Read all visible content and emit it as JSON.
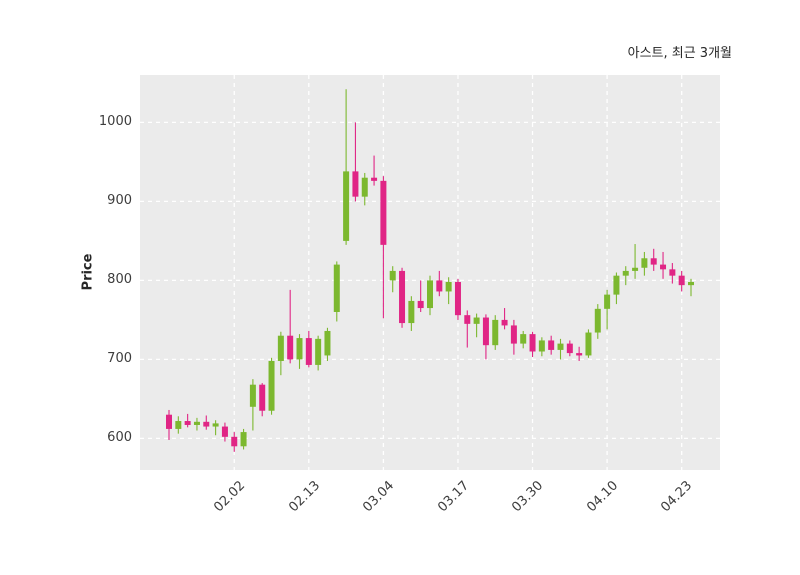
{
  "title": "아스트, 최근 3개월",
  "chart_data": {
    "type": "candlestick",
    "title": "아스트, 최근 3개월",
    "ylabel": "Price",
    "ylim": [
      560,
      1060
    ],
    "yticks": [
      600,
      700,
      800,
      900,
      1000
    ],
    "xtick_labels": [
      "02.02",
      "02.13",
      "03.04",
      "03.17",
      "03.30",
      "04.10",
      "04.23"
    ],
    "xtick_indices": [
      7,
      15,
      23,
      31,
      39,
      47,
      55
    ],
    "grid": true,
    "legend": "none",
    "colors": {
      "up": "#7cb82f",
      "down": "#e02585",
      "plot_bg": "#ebebeb",
      "grid": "#ffffff",
      "text": "#3d3d3d"
    },
    "candles": [
      [
        630,
        636,
        598,
        612
      ],
      [
        612,
        628,
        606,
        622
      ],
      [
        622,
        631,
        614,
        617
      ],
      [
        617,
        626,
        610,
        621
      ],
      [
        621,
        629,
        611,
        615
      ],
      [
        615,
        623,
        604,
        619
      ],
      [
        615,
        620,
        596,
        602
      ],
      [
        602,
        608,
        583,
        590
      ],
      [
        590,
        612,
        586,
        608
      ],
      [
        640,
        675,
        610,
        668
      ],
      [
        668,
        670,
        628,
        635
      ],
      [
        635,
        702,
        630,
        698
      ],
      [
        698,
        735,
        680,
        730
      ],
      [
        730,
        788,
        695,
        700
      ],
      [
        700,
        732,
        688,
        727
      ],
      [
        727,
        736,
        690,
        693
      ],
      [
        693,
        730,
        686,
        726
      ],
      [
        705,
        740,
        698,
        736
      ],
      [
        760,
        824,
        748,
        820
      ],
      [
        850,
        1042,
        845,
        938
      ],
      [
        938,
        1000,
        900,
        906
      ],
      [
        906,
        936,
        895,
        930
      ],
      [
        930,
        958,
        920,
        926
      ],
      [
        926,
        932,
        752,
        845
      ],
      [
        800,
        818,
        785,
        812
      ],
      [
        812,
        816,
        740,
        746
      ],
      [
        746,
        780,
        736,
        774
      ],
      [
        774,
        800,
        760,
        765
      ],
      [
        765,
        806,
        756,
        800
      ],
      [
        800,
        812,
        780,
        786
      ],
      [
        786,
        804,
        770,
        798
      ],
      [
        798,
        802,
        750,
        756
      ],
      [
        756,
        762,
        715,
        745
      ],
      [
        745,
        758,
        728,
        753
      ],
      [
        753,
        757,
        700,
        718
      ],
      [
        718,
        756,
        712,
        750
      ],
      [
        750,
        765,
        738,
        743
      ],
      [
        743,
        750,
        706,
        720
      ],
      [
        720,
        736,
        714,
        732
      ],
      [
        732,
        735,
        703,
        710
      ],
      [
        710,
        728,
        704,
        724
      ],
      [
        724,
        730,
        706,
        712
      ],
      [
        712,
        726,
        700,
        720
      ],
      [
        720,
        724,
        704,
        708
      ],
      [
        708,
        716,
        698,
        705
      ],
      [
        705,
        738,
        702,
        734
      ],
      [
        734,
        770,
        726,
        764
      ],
      [
        764,
        788,
        738,
        782
      ],
      [
        782,
        810,
        770,
        806
      ],
      [
        806,
        818,
        794,
        812
      ],
      [
        812,
        846,
        802,
        816
      ],
      [
        816,
        836,
        806,
        828
      ],
      [
        828,
        840,
        812,
        820
      ],
      [
        820,
        836,
        802,
        814
      ],
      [
        814,
        822,
        796,
        806
      ],
      [
        806,
        812,
        786,
        794
      ],
      [
        794,
        802,
        780,
        798
      ]
    ]
  }
}
